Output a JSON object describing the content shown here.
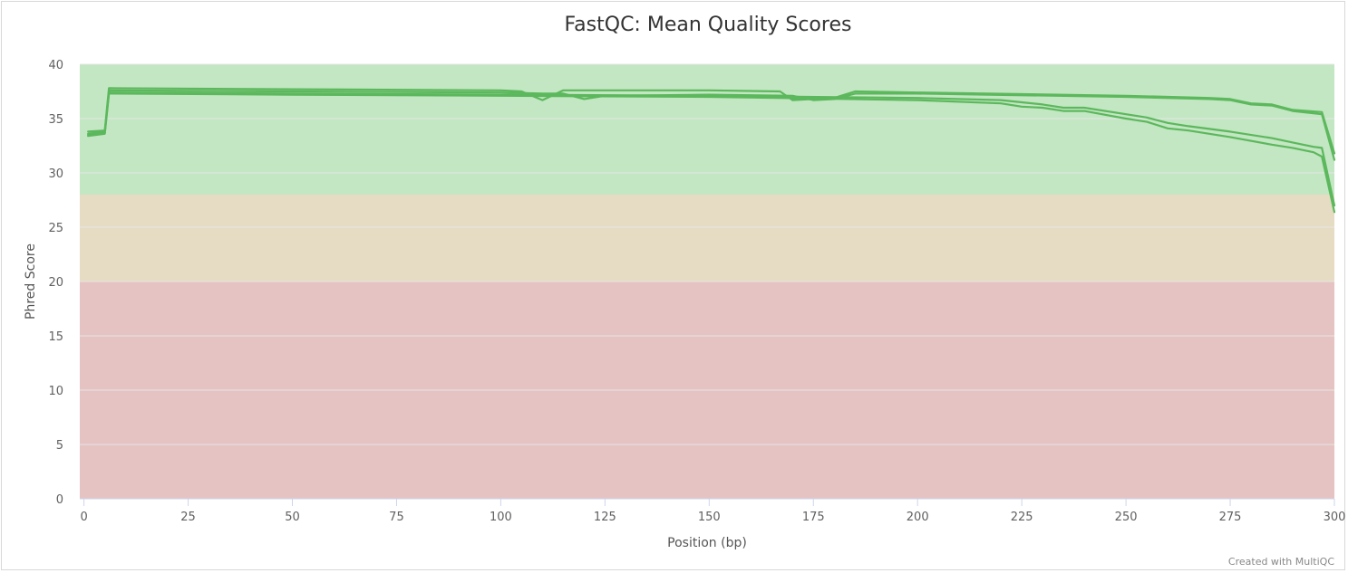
{
  "chart_data": {
    "type": "line",
    "title": "FastQC: Mean Quality Scores",
    "xlabel": "Position (bp)",
    "ylabel": "Phred Score",
    "xlim": [
      -1,
      300
    ],
    "ylim": [
      0,
      40
    ],
    "xticks": [
      0,
      25,
      50,
      75,
      100,
      125,
      150,
      175,
      200,
      225,
      250,
      275,
      300
    ],
    "yticks": [
      0,
      5,
      10,
      15,
      20,
      25,
      30,
      35,
      40
    ],
    "grid": true,
    "legend": "none",
    "line_color": "#5cb85c",
    "bands": [
      {
        "from": 28,
        "to": 40,
        "color": "#c3e6c3"
      },
      {
        "from": 20,
        "to": 28,
        "color": "#e6dcc3"
      },
      {
        "from": 0,
        "to": 20,
        "color": "#e6c3c3"
      }
    ],
    "series": [
      {
        "x": [
          1,
          5,
          6,
          50,
          100,
          105,
          110,
          115,
          120,
          125,
          150,
          167,
          170,
          180,
          185,
          200,
          250,
          270,
          275,
          280,
          285,
          290,
          297,
          300
        ],
        "y": [
          33.8,
          33.9,
          37.8,
          37.7,
          37.6,
          37.5,
          36.7,
          37.6,
          37.6,
          37.6,
          37.6,
          37.5,
          36.7,
          36.9,
          37.5,
          37.4,
          37.1,
          36.9,
          36.8,
          36.4,
          36.3,
          35.8,
          35.6,
          31.8
        ]
      },
      {
        "x": [
          1,
          5,
          6,
          50,
          100,
          110,
          115,
          120,
          125,
          150,
          170,
          175,
          180,
          185,
          200,
          250,
          270,
          275,
          280,
          285,
          290,
          297,
          300
        ],
        "y": [
          33.5,
          33.7,
          37.6,
          37.5,
          37.4,
          37.3,
          37.3,
          36.8,
          37.1,
          37.2,
          37.1,
          36.7,
          36.8,
          37.3,
          37.3,
          37.0,
          36.8,
          36.7,
          36.3,
          36.2,
          35.7,
          35.4,
          31.2
        ]
      },
      {
        "x": [
          1,
          5,
          6,
          50,
          100,
          150,
          200,
          220,
          225,
          230,
          235,
          240,
          250,
          255,
          260,
          265,
          275,
          285,
          290,
          295,
          297,
          300
        ],
        "y": [
          33.6,
          33.8,
          37.4,
          37.3,
          37.2,
          37.1,
          36.9,
          36.7,
          36.5,
          36.3,
          36.0,
          36.0,
          35.4,
          35.1,
          34.6,
          34.3,
          33.8,
          33.2,
          32.8,
          32.4,
          32.3,
          27.0
        ]
      },
      {
        "x": [
          1,
          5,
          6,
          50,
          100,
          150,
          200,
          220,
          225,
          230,
          235,
          240,
          250,
          255,
          260,
          265,
          275,
          285,
          290,
          295,
          297,
          300
        ],
        "y": [
          33.4,
          33.6,
          37.3,
          37.2,
          37.1,
          37.0,
          36.7,
          36.4,
          36.1,
          36.0,
          35.7,
          35.7,
          35.0,
          34.7,
          34.1,
          33.9,
          33.3,
          32.6,
          32.3,
          31.9,
          31.5,
          26.4
        ]
      }
    ]
  },
  "credits": "Created with MultiQC"
}
